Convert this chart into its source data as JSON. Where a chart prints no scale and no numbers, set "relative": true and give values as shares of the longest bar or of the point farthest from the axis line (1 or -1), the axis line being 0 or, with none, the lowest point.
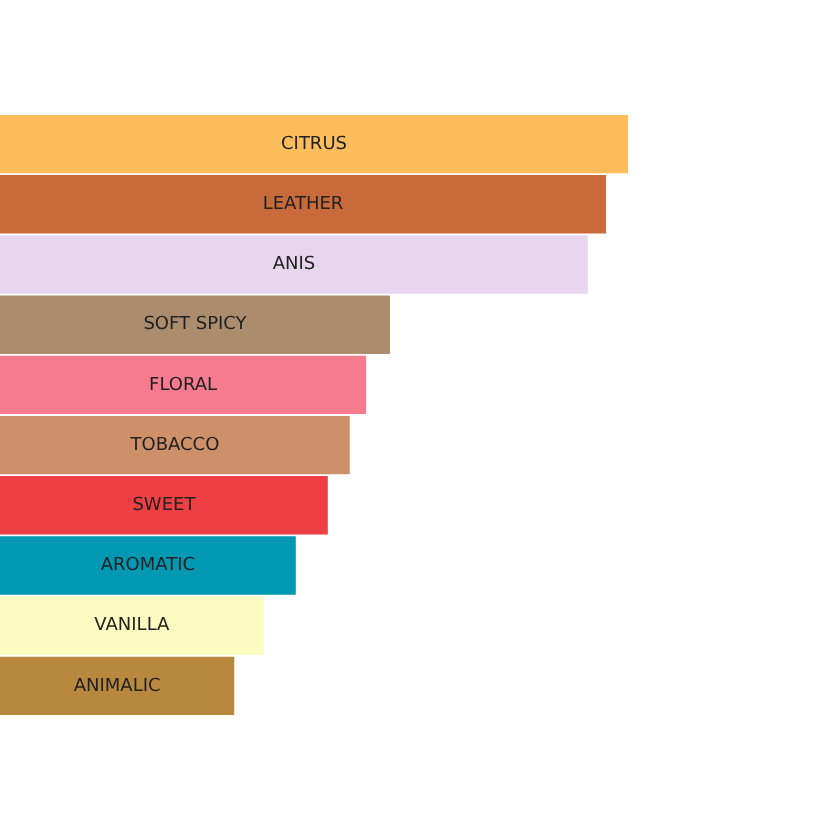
{
  "chart_data": {
    "type": "bar",
    "orientation": "horizontal",
    "relative": true,
    "categories": [
      "CITRUS",
      "LEATHER",
      "ANIS",
      "SOFT SPICY",
      "FLORAL",
      "TOBACCO",
      "SWEET",
      "AROMATIC",
      "VANILLA",
      "ANIMALIC"
    ],
    "values": [
      1,
      0.965,
      0.936,
      0.621,
      0.583,
      0.557,
      0.522,
      0.471,
      0.42,
      0.373
    ],
    "colors": [
      "#fdbd5a",
      "#c96a3a",
      "#e8d5ee",
      "#ab8d6e",
      "#f77b8e",
      "#cd9068",
      "#ee3f45",
      "#0098b3",
      "#fdfcc0",
      "#b8883f"
    ],
    "legend": false
  }
}
